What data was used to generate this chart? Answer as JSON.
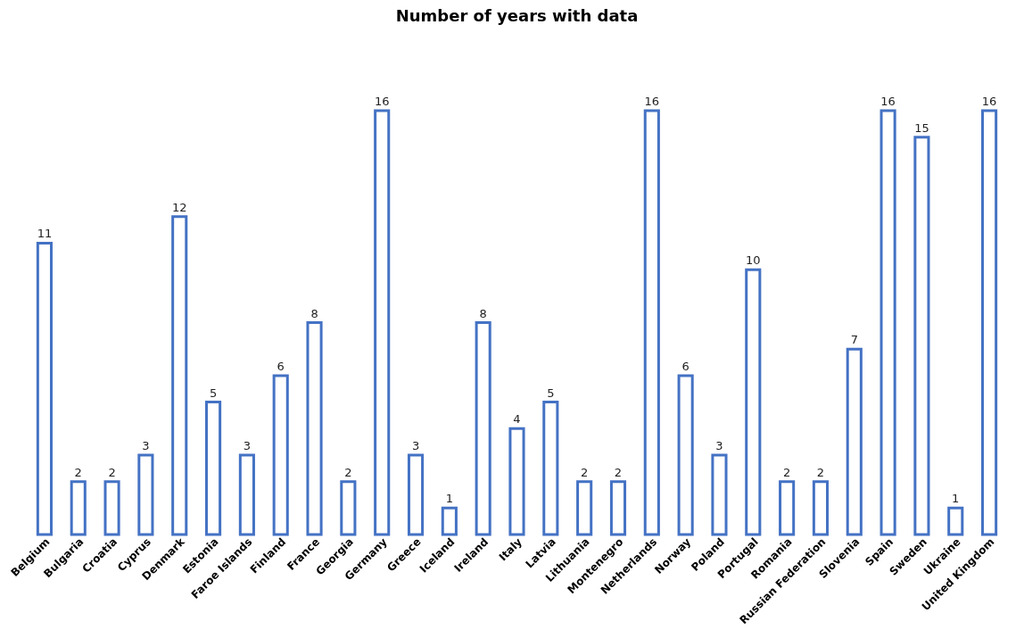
{
  "chart_data": {
    "type": "bar",
    "title": "Number of years with data",
    "categories": [
      "Belgium",
      "Bulgaria",
      "Croatia",
      "Cyprus",
      "Denmark",
      "Estonia",
      "Faroe Islands",
      "Finland",
      "France",
      "Georgia",
      "Germany",
      "Greece",
      "Iceland",
      "Ireland",
      "Italy",
      "Latvia",
      "Lithuania",
      "Montenegro",
      "Netherlands",
      "Norway",
      "Poland",
      "Portugal",
      "Romania",
      "Russian Federation",
      "Slovenia",
      "Spain",
      "Sweden",
      "Ukraine",
      "United Kingdom"
    ],
    "values": [
      11,
      2,
      2,
      3,
      12,
      5,
      3,
      6,
      8,
      2,
      16,
      3,
      1,
      8,
      4,
      5,
      2,
      2,
      16,
      6,
      3,
      10,
      2,
      2,
      7,
      16,
      15,
      1,
      16
    ],
    "color": "#4472c4",
    "data_labels": true,
    "grid": false
  }
}
